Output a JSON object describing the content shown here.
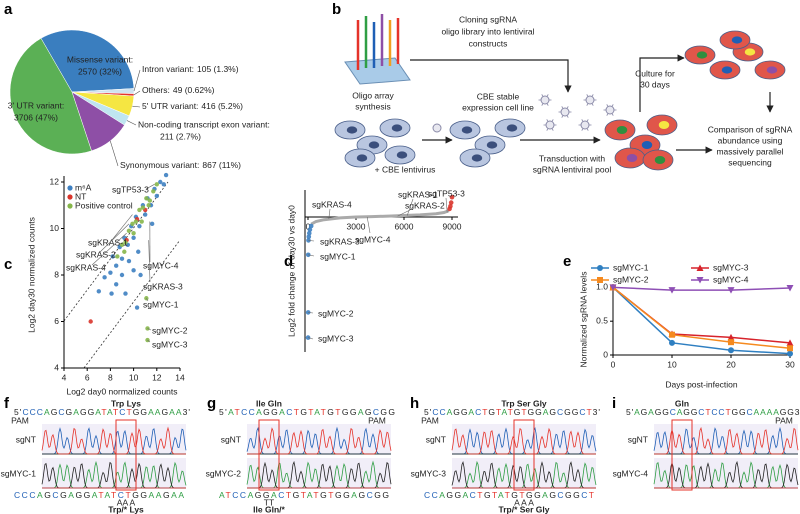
{
  "panel_labels": [
    "a",
    "b",
    "c",
    "d",
    "e",
    "f",
    "g",
    "h",
    "i"
  ],
  "chart_data": [
    {
      "type": "pie",
      "categories": [
        "Missense variant:",
        "Intron variant:",
        "Others:",
        "5' UTR variant:",
        "Non-coding transcript exon variant:",
        "Synonymous variant:",
        "3' UTR variant:"
      ],
      "values": [
        2570,
        105,
        49,
        416,
        211,
        867,
        3706
      ],
      "value_labels": [
        "2570 (32%)",
        "105 (1.3%)",
        "49 (0.62%)",
        "416 (5.2%)",
        "211 (2.7%)",
        "867 (11%)",
        "3706 (47%)"
      ],
      "colors": [
        "#3a7ebf",
        "#cfe3f0",
        "#e3342f",
        "#f5e642",
        "#bfe5f0",
        "#8e4fa6",
        "#5bb055"
      ]
    },
    {
      "type": "scatter",
      "xlabel": "Log2 day0 normalized counts",
      "ylabel": "Log2 day30 normalized counts",
      "xlim": [
        4,
        14
      ],
      "xticks": [
        4,
        6,
        8,
        10,
        12,
        14
      ],
      "ylim": [
        4,
        12
      ],
      "yticks": [
        4,
        6,
        8,
        10,
        12
      ],
      "legend": "upper left",
      "series": [
        {
          "name": "m⁶A",
          "color": "#3d7fc1",
          "x": [
            7.0,
            7.5,
            8.0,
            8.2,
            8.5,
            8.8,
            9.0,
            9.2,
            9.5,
            9.8,
            10.0,
            10.2,
            10.5,
            10.8,
            11.0,
            11.2,
            11.5,
            11.8,
            12.0,
            12.3,
            12.6,
            8.5,
            9.0,
            9.6,
            10.4,
            10.0,
            10.6,
            9.3,
            12.8,
            11.6,
            8.1,
            10.3
          ],
          "y": [
            7.3,
            7.9,
            8.1,
            8.8,
            8.4,
            9.2,
            8.7,
            9.6,
            9.3,
            10.1,
            9.6,
            10.5,
            10.1,
            11.0,
            10.6,
            11.3,
            11.0,
            11.7,
            11.4,
            12.0,
            11.9,
            7.6,
            8.0,
            8.6,
            9.0,
            8.2,
            8.0,
            7.2,
            12.3,
            10.2,
            7.2,
            6.6
          ]
        },
        {
          "name": "NT",
          "color": "#d9342b",
          "x": [
            6.3,
            9.4,
            10.3,
            11.0
          ],
          "y": [
            6.0,
            9.5,
            10.4,
            10.8
          ]
        },
        {
          "name": "Positive control",
          "color": "#86b64a",
          "x": [
            8.6,
            9.0,
            9.3,
            9.6,
            9.9,
            10.2,
            10.5,
            10.8,
            11.1,
            11.4,
            11.7,
            12.0,
            9.2,
            10.0,
            10.7,
            11.3,
            11.2,
            11.2,
            11.1
          ],
          "y": [
            8.8,
            9.3,
            9.4,
            9.9,
            10.2,
            10.3,
            10.8,
            10.9,
            11.3,
            11.2,
            11.6,
            11.9,
            9.0,
            9.8,
            10.3,
            11.0,
            5.2,
            5.7,
            7.0
          ]
        }
      ],
      "annotations": [
        {
          "text": "sgTP53-3",
          "x": 11.8,
          "y": 11.9
        },
        {
          "text": "sgKRAS-1",
          "x": 9.9,
          "y": 10.6
        },
        {
          "text": "sgKRAS-2",
          "x": 9.6,
          "y": 10.2
        },
        {
          "text": "sgKRAS-4",
          "x": 9.4,
          "y": 9.8
        },
        {
          "text": "sgMYC-4",
          "x": 11.4,
          "y": 10.3
        },
        {
          "text": "sgKRAS-3",
          "x": 11.3,
          "y": 9.5
        },
        {
          "text": "sgMYC-1",
          "x": 11.1,
          "y": 7.0
        },
        {
          "text": "sgMYC-2",
          "x": 11.2,
          "y": 5.7
        },
        {
          "text": "sgMYC-3",
          "x": 11.2,
          "y": 5.2
        }
      ]
    },
    {
      "type": "scatter",
      "ylabel": "Log2 fold change of day30 vs day0",
      "xlim": [
        0,
        9000
      ],
      "xticks": [
        0,
        3000,
        6000,
        9000
      ],
      "ylim": [
        -7.5,
        1.5
      ],
      "series": [
        {
          "color": "#aaaaaa",
          "line": true,
          "x": [
            200,
            500,
            1000,
            2000,
            3000,
            4000,
            5000,
            6000,
            7000,
            8000,
            8500,
            8800
          ],
          "y": [
            -0.4,
            -0.25,
            -0.15,
            -0.05,
            0,
            0.02,
            0.05,
            0.08,
            0.12,
            0.18,
            0.25,
            0.35
          ]
        },
        {
          "color": "#3d7fc1",
          "x": [
            5,
            10,
            15,
            30,
            50,
            80,
            120,
            200
          ],
          "y": [
            -6.7,
            -5.3,
            -2.1,
            -1.3,
            -1.1,
            -0.9,
            -0.7,
            -0.5
          ]
        },
        {
          "color": "#d9342b",
          "x": [
            8850,
            8900,
            8950,
            9000
          ],
          "y": [
            0.45,
            0.6,
            0.8,
            1.1
          ]
        }
      ],
      "annotations": [
        {
          "text": "sgKRAS-4",
          "x": 1300,
          "y": -0.1
        },
        {
          "text": "sgMYC-4",
          "x": 3700,
          "y": 0
        },
        {
          "text": "sgKRAS-2",
          "x": 5600,
          "y": 0.05
        },
        {
          "text": "sgKRAS-1",
          "x": 6200,
          "y": 0.08
        },
        {
          "text": "sgTP53-3",
          "x": 8700,
          "y": 0.25
        },
        {
          "text": "sgKRAS-3",
          "x": 30,
          "y": -1.3
        },
        {
          "text": "sgMYC-1",
          "x": 15,
          "y": -2.1
        },
        {
          "text": "sgMYC-2",
          "x": 10,
          "y": -5.3
        },
        {
          "text": "sgMYC-3",
          "x": 5,
          "y": -6.7
        }
      ]
    },
    {
      "type": "line",
      "xlabel": "Days post-infection",
      "ylabel": "Normalized sgRNA levels",
      "x": [
        0,
        10,
        20,
        30
      ],
      "xlim": [
        0,
        30
      ],
      "xticks": [
        0,
        10,
        20,
        30
      ],
      "ylim": [
        0,
        1.05
      ],
      "yticks": [
        0,
        0.5,
        {
          "value": 1,
          "label": "1.0"
        }
      ],
      "legend": "top",
      "series": [
        {
          "name": "sgMYC-1",
          "color": "#2f7fc1",
          "marker": "circle",
          "values": [
            1,
            0.18,
            0.07,
            0.02
          ]
        },
        {
          "name": "sgMYC-3",
          "color": "#d7232b",
          "marker": "triangle-up",
          "values": [
            1,
            0.31,
            0.26,
            0.18
          ]
        },
        {
          "name": "sgMYC-2",
          "color": "#f58a1f",
          "marker": "square",
          "values": [
            1,
            0.3,
            0.19,
            0.1
          ]
        },
        {
          "name": "sgMYC-4",
          "color": "#8e4fb5",
          "marker": "triangle-down",
          "values": [
            1,
            0.96,
            0.96,
            0.99
          ]
        }
      ]
    }
  ],
  "diagram": {
    "oligo": [
      "Oligo array",
      "synthesis"
    ],
    "cloning": [
      "Cloning sgRNA",
      "oligo library into lentiviral",
      "constructs"
    ],
    "cell_line": [
      "CBE stable",
      "expression cell line"
    ],
    "lentivirus": "+ CBE lentivirus",
    "transduction": [
      "Transduction with",
      "sgRNA lentiviral pool"
    ],
    "culture": [
      "Culture for",
      "30 days"
    ],
    "comparison": [
      "Comparison of sgRNA",
      "abundance using",
      "massively parallel",
      "sequencing"
    ]
  },
  "sequences": [
    {
      "top": "5'CCCAGCGAGGATATCTGGAAGAA3'",
      "codons_top": "Trp Lys",
      "pam": "PAM",
      "rows": [
        "sgNT",
        "sgMYC-1"
      ],
      "bottom": "CCCAGCGAGGATATCTGGAAGAA",
      "edits": "AA A",
      "codons_bottom": "Trp/* Lys"
    },
    {
      "top": "5'ATCCAGGACTGTATGTGGAGCGG",
      "codons_top": "Ile Gln",
      "pam": "PAM",
      "rows": [
        "sgNT",
        "sgMYC-2"
      ],
      "bottom": "ATCCAGGACTGTATGTGGAGCGG",
      "edits": "TT",
      "codons_bottom": "Ile Gln/*"
    },
    {
      "top": "5'CCAGGACTGTATGTGGAGCGGCT3'",
      "codons_top": "Trp Ser Gly",
      "pam": "PAM",
      "rows": [
        "sgNT",
        "sgMYC-3"
      ],
      "bottom": "CCAGGACTGTATGTGGAGCGGCT",
      "edits": "A A A",
      "codons_bottom": "Trp/* Ser Gly"
    },
    {
      "top": "5'AGAGGCAGGCTCCTGGCAAAAGG3'",
      "codons_top": "Gln",
      "pam": "PAM",
      "rows": [
        "sgNT",
        "sgMYC-4"
      ]
    }
  ]
}
